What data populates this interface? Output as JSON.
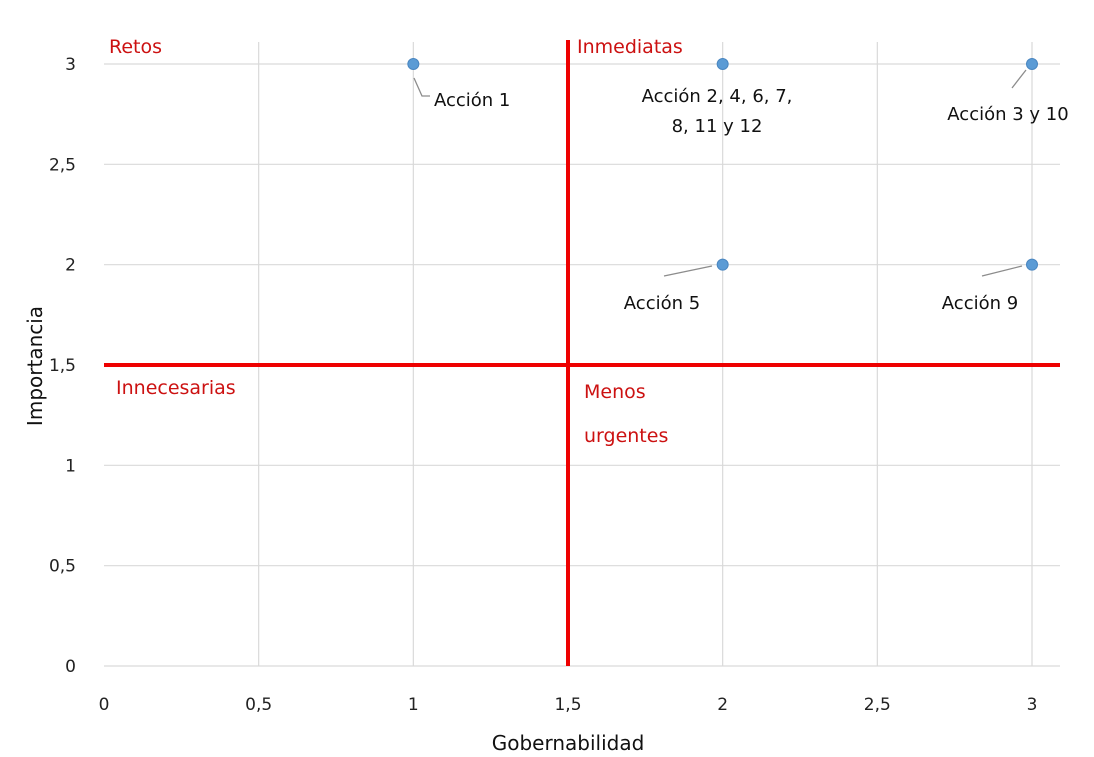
{
  "chart_data": {
    "type": "scatter",
    "xlabel": "Gobernabilidad",
    "ylabel": "Importancia",
    "xlim": [
      0,
      3
    ],
    "ylim": [
      0,
      3
    ],
    "x_ticks": [
      "0",
      "0,5",
      "1",
      "1,5",
      "2",
      "2,5",
      "3"
    ],
    "y_ticks": [
      "0",
      "0,5",
      "1",
      "1,5",
      "2",
      "2,5",
      "3"
    ],
    "grid": true,
    "points": [
      {
        "x": 1,
        "y": 3,
        "label": [
          "Acción 1"
        ]
      },
      {
        "x": 2,
        "y": 3,
        "label": [
          "Acción 2, 4, 6, 7,",
          "8, 11 y 12"
        ]
      },
      {
        "x": 3,
        "y": 3,
        "label": [
          "Acción 3 y 10"
        ]
      },
      {
        "x": 2,
        "y": 2,
        "label": [
          "Acción 5"
        ]
      },
      {
        "x": 3,
        "y": 2,
        "label": [
          "Acción 9"
        ]
      }
    ],
    "reference_lines": {
      "x": 1.5,
      "y": 1.5
    },
    "quadrant_labels": {
      "top_left": [
        "Retos"
      ],
      "top_right": [
        "Inmediatas"
      ],
      "bottom_left": [
        "Innecesarias"
      ],
      "bottom_right": [
        "Menos",
        "urgentes"
      ]
    },
    "colors": {
      "point": "#5b9bd5",
      "reference_line": "#ee0000",
      "quadrant_label": "#cc1111",
      "grid": "#d9d9d9",
      "leader": "#8c8c8c"
    }
  }
}
